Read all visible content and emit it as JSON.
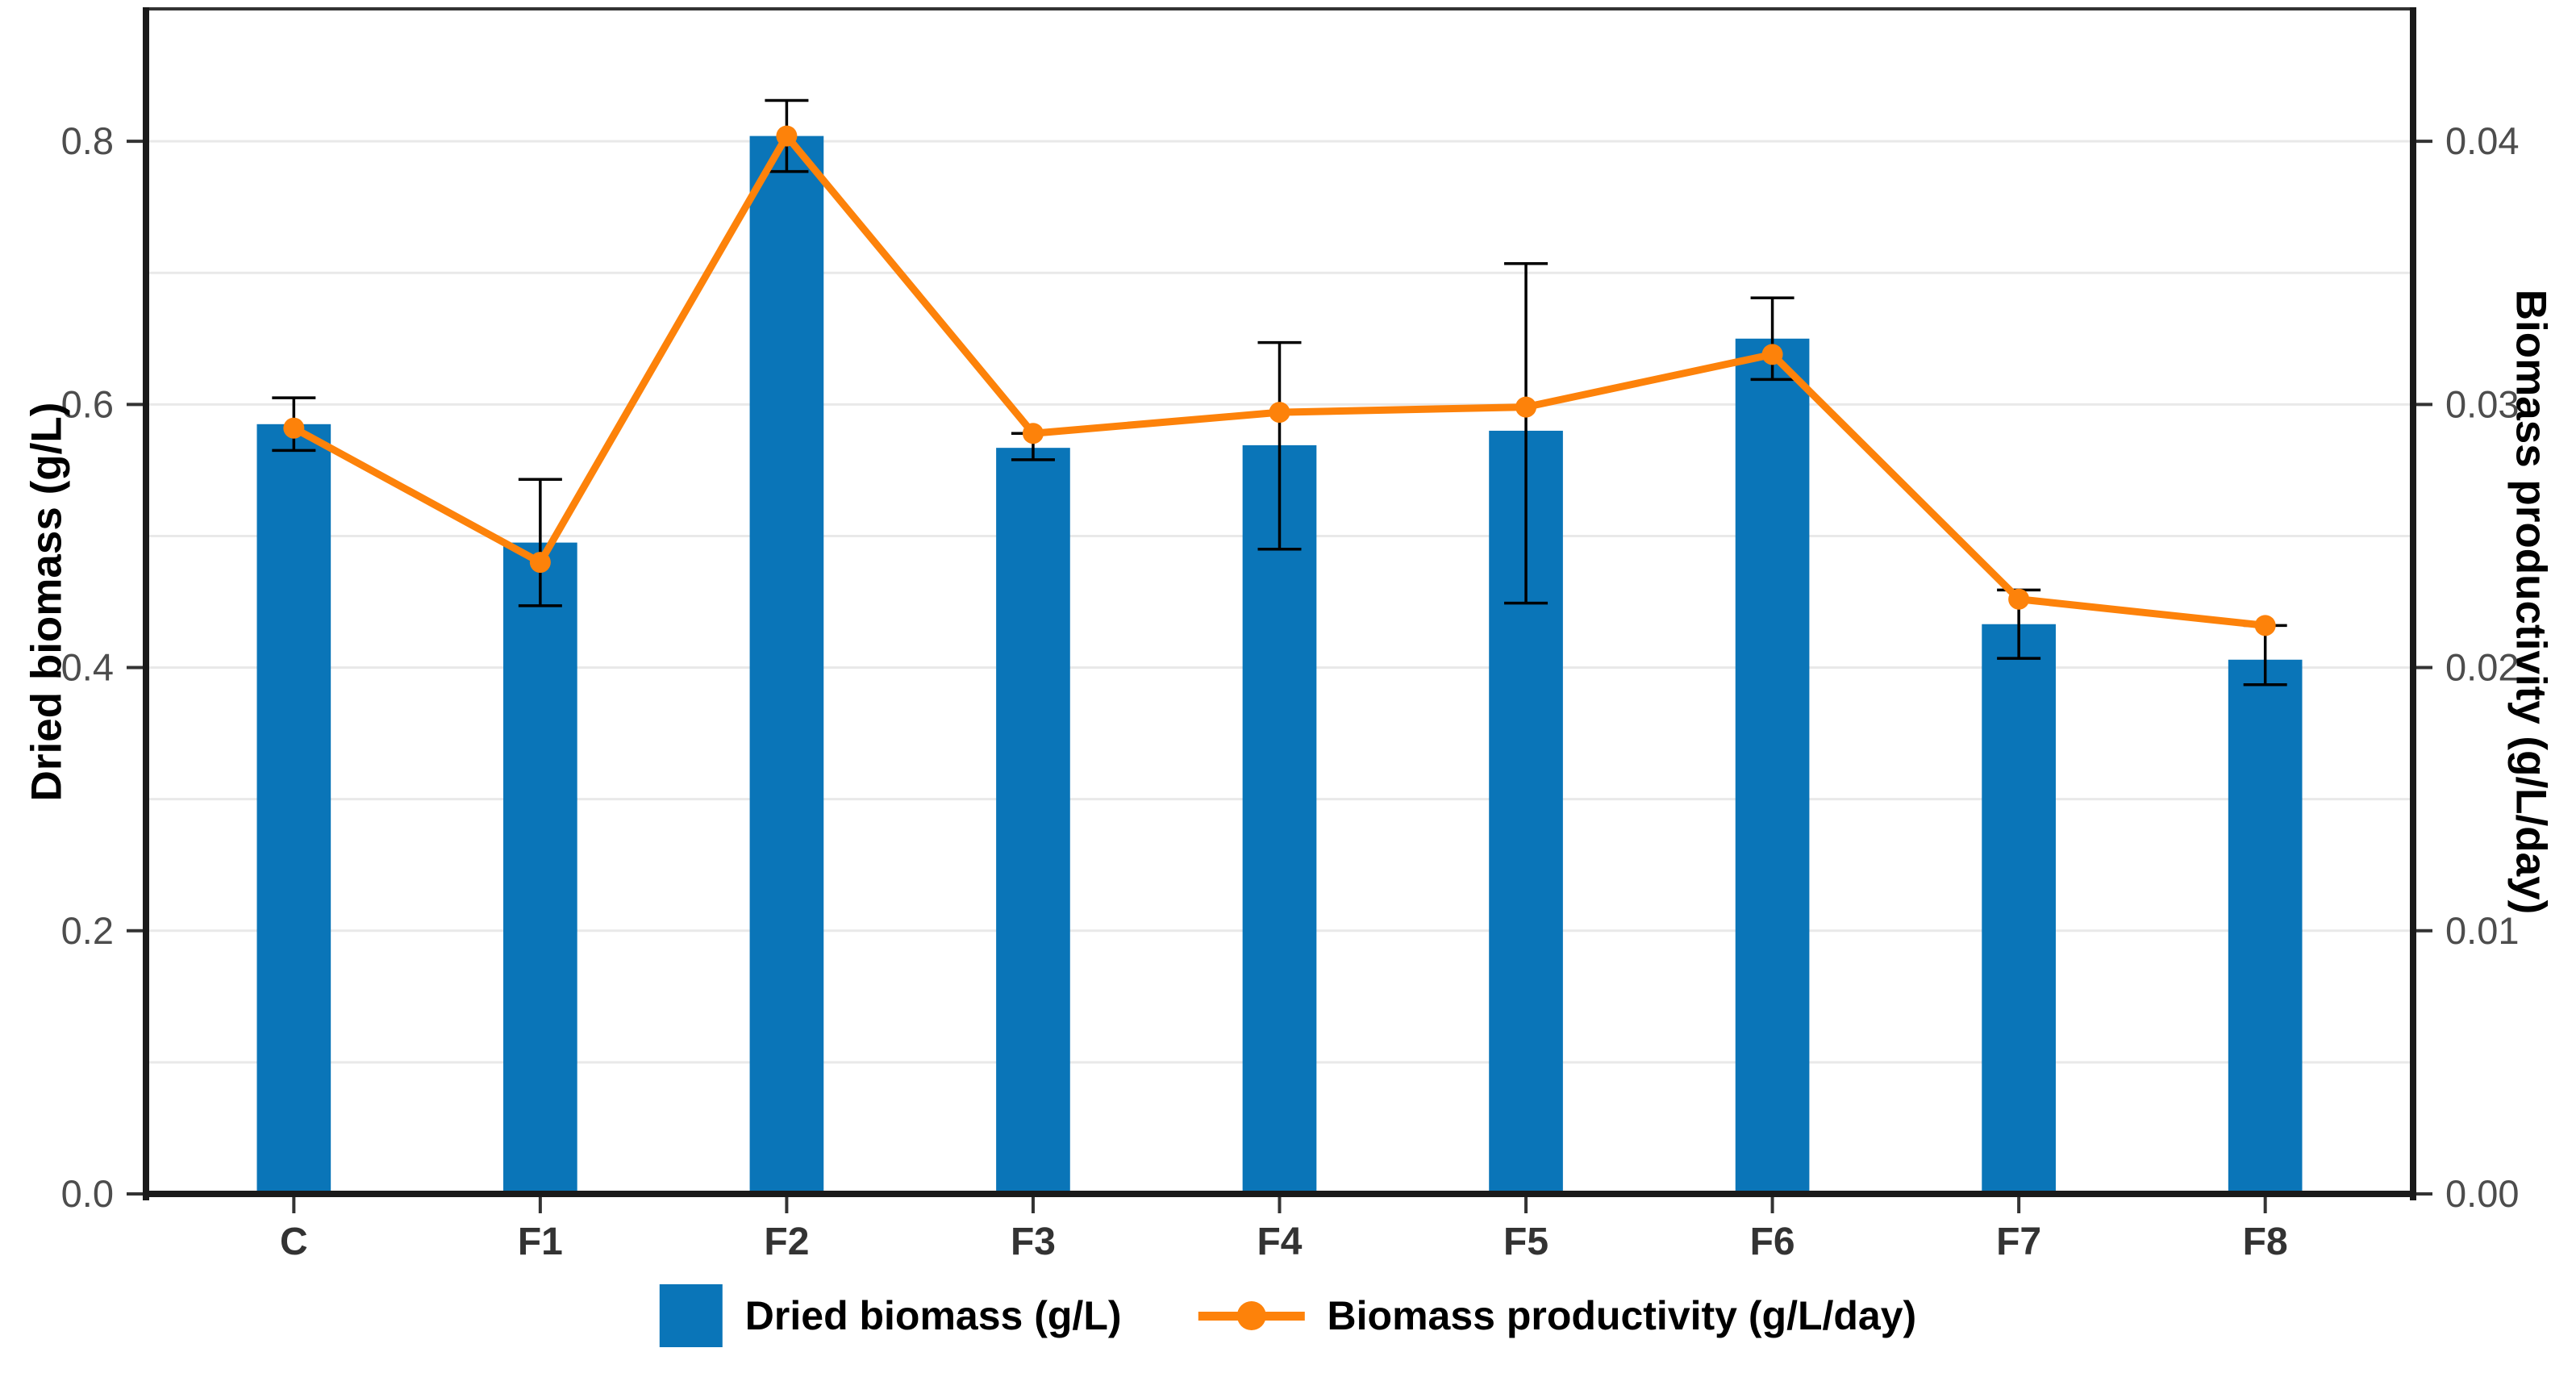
{
  "figure": {
    "left_axis_title": "Dried biomass (g/L)",
    "right_axis_title": "Biomass productivity (g/L/day)"
  },
  "legend": {
    "items": [
      {
        "label": "Dried biomass (g/L)",
        "marker": "square",
        "color": "#0a75b8"
      },
      {
        "label": "Biomass productivity (g/L/day)",
        "marker": "line-dot",
        "color": "#fd820a"
      }
    ]
  },
  "chart_data": {
    "type": "bar",
    "subtype": "dual-axis bar + line with error bars",
    "categories": [
      "C",
      "F1",
      "F2",
      "F3",
      "F4",
      "F5",
      "F6",
      "F7",
      "F8"
    ],
    "series": [
      {
        "name": "Dried biomass (g/L)",
        "type": "bar",
        "axis": "left",
        "color": "#0a75b8",
        "values": [
          0.585,
          0.495,
          0.804,
          0.567,
          0.569,
          0.58,
          0.65,
          0.433,
          0.406
        ],
        "error_low": [
          0.565,
          0.447,
          0.777,
          0.558,
          0.49,
          0.449,
          0.619,
          0.407,
          0.387
        ],
        "error_high": [
          0.605,
          0.543,
          0.831,
          0.578,
          0.647,
          0.707,
          0.681,
          0.459,
          0.432
        ]
      },
      {
        "name": "Biomass productivity (g/L/day)",
        "type": "line",
        "axis": "right",
        "color": "#fd820a",
        "values": [
          0.0291,
          0.024,
          0.0402,
          0.0289,
          0.0297,
          0.0299,
          0.0319,
          0.0226,
          0.0216
        ]
      }
    ],
    "left_axis": {
      "label": "Dried biomass (g/L)",
      "ticks": [
        "0.0",
        "0.2",
        "0.4",
        "0.6",
        "0.8"
      ],
      "range": [
        0,
        0.9
      ]
    },
    "right_axis": {
      "label": "Biomass productivity (g/L/day)",
      "ticks": [
        "0.00",
        "0.01",
        "0.02",
        "0.03",
        "0.04"
      ],
      "range": [
        0,
        0.045
      ]
    },
    "x_axis": {
      "tick_labels": [
        "C",
        "F1",
        "F2",
        "F3",
        "F4",
        "F5",
        "F6",
        "F7",
        "F8"
      ]
    },
    "grid": {
      "y_interval_left_units": 0.1,
      "color": "#e9e9e9",
      "vertical": false
    },
    "error_bar_color": "#000000",
    "axis_line_color": "#1a1a1a",
    "tick_label_color": "#4d4d4d",
    "category_label_color": "#333333",
    "legend_position": "bottom"
  }
}
